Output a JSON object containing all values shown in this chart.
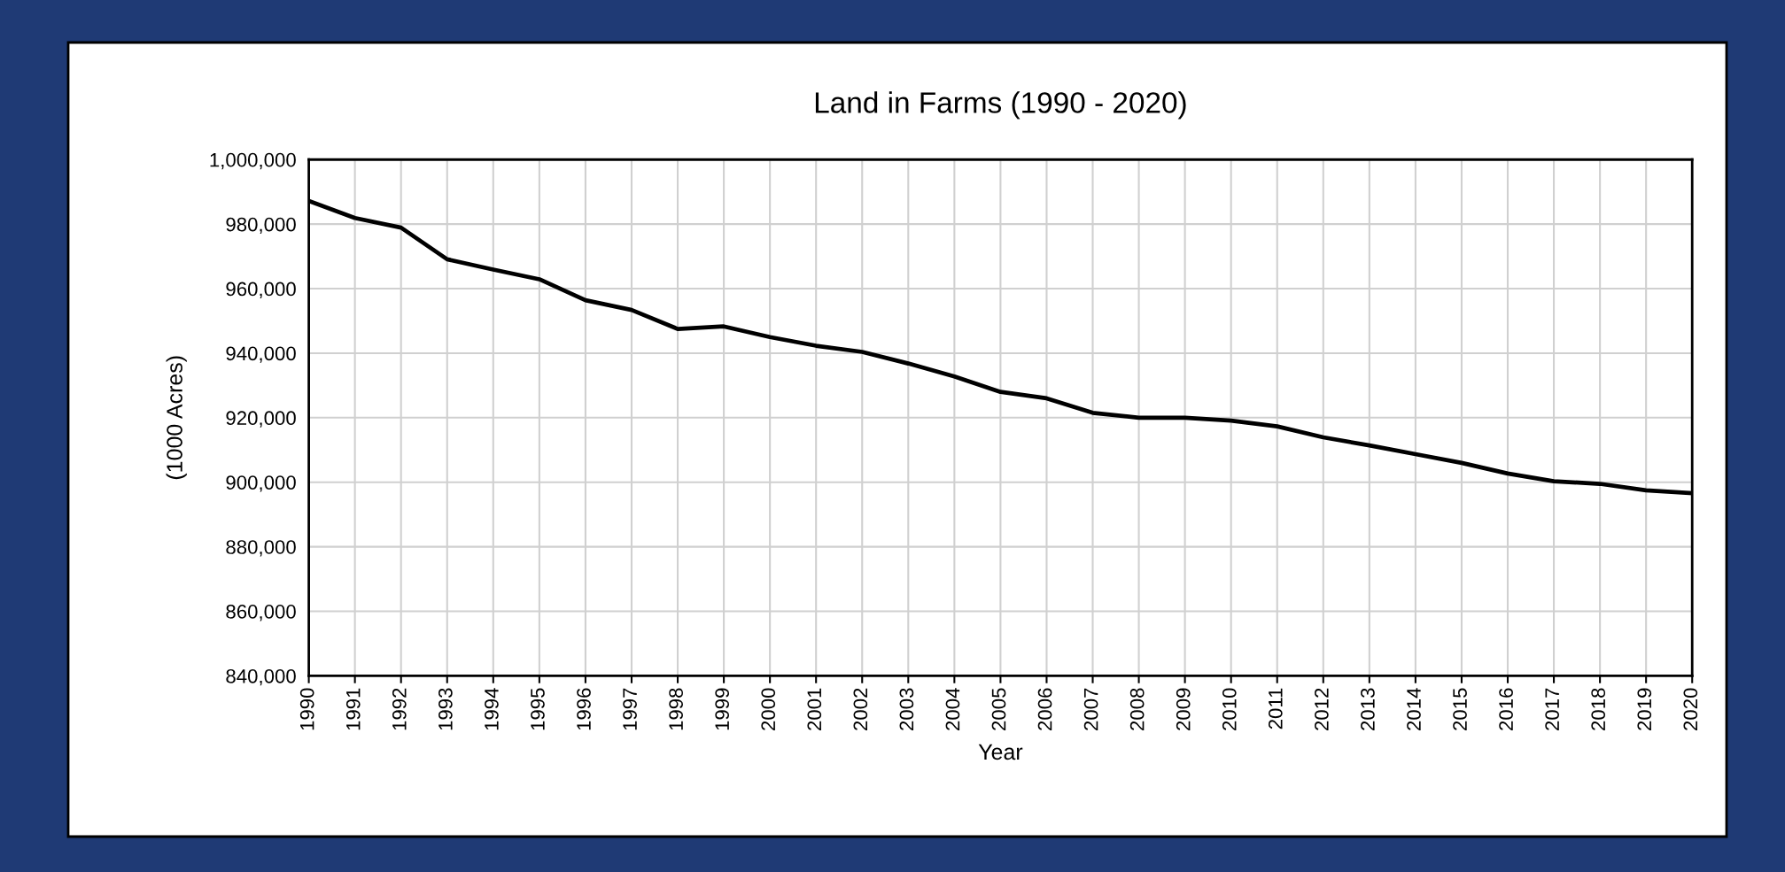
{
  "chart_data": {
    "type": "line",
    "title": "Land in Farms (1990 - 2020)",
    "xlabel": "Year",
    "ylabel": "(1000 Acres)",
    "categories": [
      "1990",
      "1991",
      "1992",
      "1993",
      "1994",
      "1995",
      "1996",
      "1997",
      "1998",
      "1999",
      "2000",
      "2001",
      "2002",
      "2003",
      "2004",
      "2005",
      "2006",
      "2007",
      "2008",
      "2009",
      "2010",
      "2011",
      "2012",
      "2013",
      "2014",
      "2015",
      "2016",
      "2017",
      "2018",
      "2019",
      "2020"
    ],
    "series": [
      {
        "color": "#000000",
        "values": [
          987200,
          981900,
          978900,
          969100,
          965900,
          962900,
          956400,
          953400,
          947500,
          948300,
          945000,
          942300,
          940400,
          936800,
          932800,
          928000,
          926000,
          921500,
          920000,
          920000,
          919100,
          917300,
          913900,
          911400,
          908700,
          906000,
          902700,
          900300,
          899500,
          897500,
          896600
        ]
      }
    ],
    "ylim": [
      840000,
      1000000
    ],
    "yticks": [
      {
        "value": 840000,
        "label": "840,000"
      },
      {
        "value": 860000,
        "label": "860,000"
      },
      {
        "value": 880000,
        "label": "880,000"
      },
      {
        "value": 900000,
        "label": "900,000"
      },
      {
        "value": 920000,
        "label": "920,000"
      },
      {
        "value": 940000,
        "label": "940,000"
      },
      {
        "value": 960000,
        "label": "960,000"
      },
      {
        "value": 980000,
        "label": "980,000"
      },
      {
        "value": 1000000,
        "label": "1,000,000"
      }
    ],
    "grid": true,
    "marker": "none",
    "line_style": "solid"
  }
}
